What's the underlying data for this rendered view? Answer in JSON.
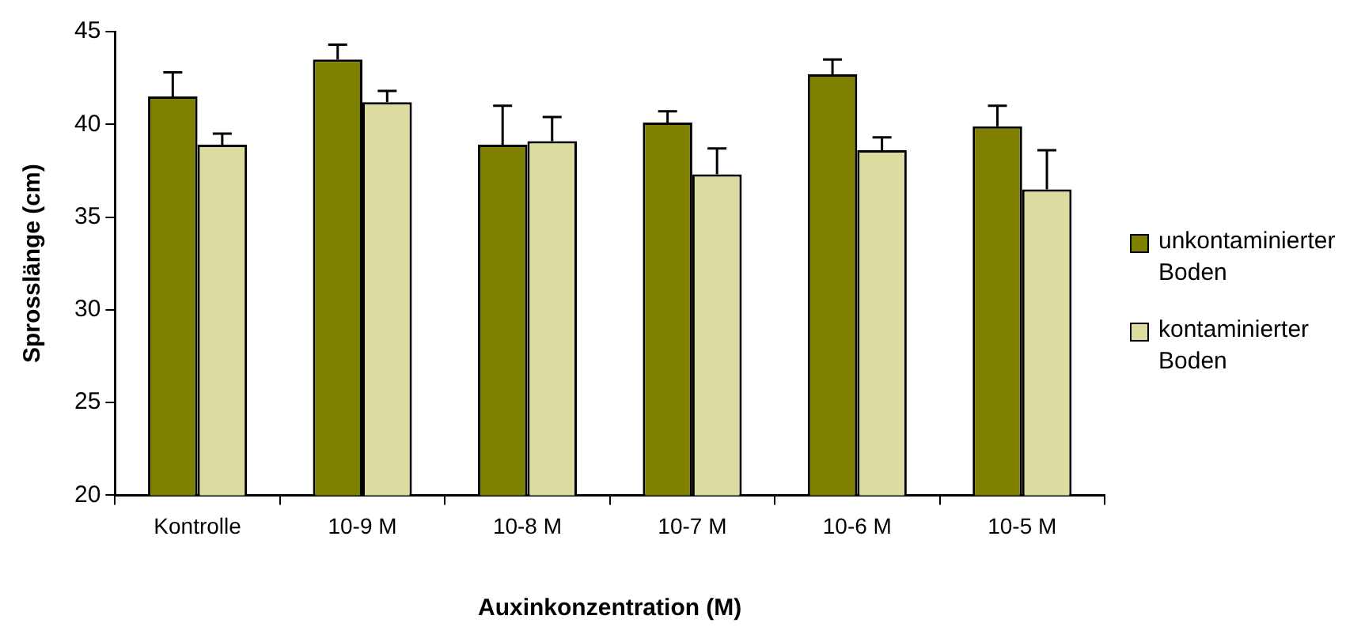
{
  "chart_data": {
    "type": "bar",
    "xlabel": "Auxinkonzentration (M)",
    "ylabel": "Sprosslänge (cm)",
    "categories": [
      "Kontrolle",
      "10-9 M",
      "10-8 M",
      "10-7 M",
      "10-6 M",
      "10-5 M"
    ],
    "series": [
      {
        "name": "unkontaminierter Boden",
        "color": "#808000",
        "values": [
          41.5,
          43.5,
          38.9,
          40.1,
          42.7,
          39.9
        ],
        "errors": [
          [
            41.5,
            42.8
          ],
          [
            43.5,
            44.3
          ],
          [
            38.9,
            41.0
          ],
          [
            40.1,
            40.7
          ],
          [
            42.7,
            43.5
          ],
          [
            39.9,
            41.0
          ]
        ]
      },
      {
        "name": "kontaminierter Boden",
        "color": "#dcdca0",
        "values": [
          38.9,
          41.2,
          39.1,
          37.3,
          38.6,
          36.5
        ],
        "errors": [
          [
            38.9,
            39.5
          ],
          [
            41.2,
            41.8
          ],
          [
            39.1,
            40.4
          ],
          [
            37.3,
            38.7
          ],
          [
            38.6,
            39.3
          ],
          [
            36.5,
            38.6
          ]
        ]
      }
    ],
    "ylim": [
      20,
      45
    ],
    "yticks": [
      20,
      25,
      30,
      35,
      40,
      45
    ],
    "grid": false,
    "legend": "right"
  }
}
